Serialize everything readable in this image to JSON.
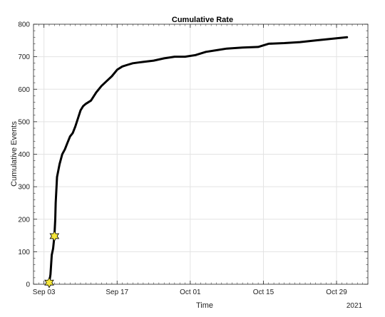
{
  "chart_data": {
    "type": "line",
    "title": "Cumulative Rate",
    "xlabel": "Time",
    "ylabel": "Cumulative Events",
    "year_label": "2021",
    "xlim": [
      "2021-09-01",
      "2021-11-04"
    ],
    "ylim": [
      0,
      800
    ],
    "grid": true,
    "x_ticks": [
      {
        "date": "2021-09-03",
        "label": "Sep 03"
      },
      {
        "date": "2021-09-17",
        "label": "Sep 17"
      },
      {
        "date": "2021-10-01",
        "label": "Oct 01"
      },
      {
        "date": "2021-10-15",
        "label": "Oct 15"
      },
      {
        "date": "2021-10-29",
        "label": "Oct 29"
      }
    ],
    "y_ticks": [
      0,
      100,
      200,
      300,
      400,
      500,
      600,
      700,
      800
    ],
    "series": [
      {
        "color": "#000000",
        "x": [
          "2021-09-04 00:00",
          "2021-09-04 06:00",
          "2021-09-04 12:00",
          "2021-09-04 18:00",
          "2021-09-05 00:00",
          "2021-09-05 04:00",
          "2021-09-05 06:00",
          "2021-09-05 12:00",
          "2021-09-06 00:00",
          "2021-09-06 12:00",
          "2021-09-07 00:00",
          "2021-09-07 12:00",
          "2021-09-08 00:00",
          "2021-09-08 12:00",
          "2021-09-09 00:00",
          "2021-09-09 12:00",
          "2021-09-10 00:00",
          "2021-09-10 12:00",
          "2021-09-11 00:00",
          "2021-09-12 00:00",
          "2021-09-13 00:00",
          "2021-09-14 00:00",
          "2021-09-15 00:00",
          "2021-09-16 00:00",
          "2021-09-17 00:00",
          "2021-09-18 00:00",
          "2021-09-19 00:00",
          "2021-09-20 00:00",
          "2021-09-21 00:00",
          "2021-09-22 00:00",
          "2021-09-24 00:00",
          "2021-09-26 00:00",
          "2021-09-28 00:00",
          "2021-09-30 00:00",
          "2021-10-02 00:00",
          "2021-10-04 00:00",
          "2021-10-06 00:00",
          "2021-10-08 00:00",
          "2021-10-11 00:00",
          "2021-10-14 00:00",
          "2021-10-16 00:00",
          "2021-10-19 00:00",
          "2021-10-22 00:00",
          "2021-10-25 00:00",
          "2021-10-28 00:00",
          "2021-10-31 00:00"
        ],
        "y": [
          5,
          30,
          90,
          110,
          148,
          200,
          250,
          330,
          370,
          400,
          415,
          435,
          455,
          465,
          485,
          510,
          535,
          548,
          555,
          565,
          590,
          610,
          625,
          640,
          660,
          670,
          675,
          680,
          682,
          684,
          688,
          695,
          700,
          700,
          705,
          715,
          720,
          725,
          728,
          730,
          740,
          742,
          745,
          750,
          755,
          760
        ]
      }
    ],
    "markers": [
      {
        "label": "star",
        "x": "2021-09-04 00:00",
        "y": 5,
        "color": "#f5e63a"
      },
      {
        "label": "star",
        "x": "2021-09-05 00:00",
        "y": 148,
        "color": "#f5e63a"
      }
    ]
  }
}
